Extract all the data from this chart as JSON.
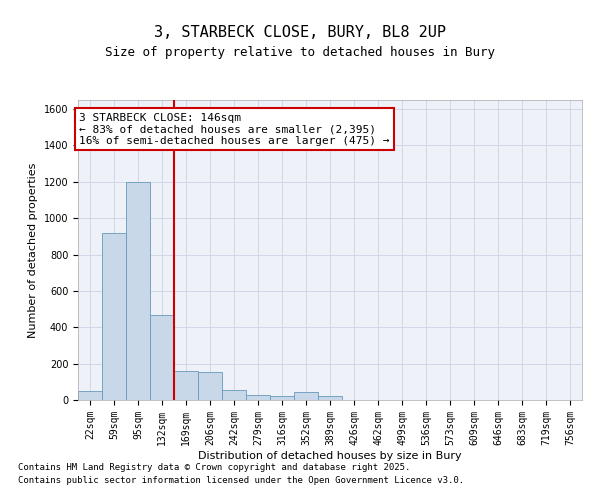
{
  "title_line1": "3, STARBECK CLOSE, BURY, BL8 2UP",
  "title_line2": "Size of property relative to detached houses in Bury",
  "xlabel": "Distribution of detached houses by size in Bury",
  "ylabel": "Number of detached properties",
  "bar_color": "#c8d8e8",
  "bar_edge_color": "#6699bb",
  "annotation_box_color": "#cc0000",
  "vline_color": "#cc0000",
  "grid_color": "#d0d8e8",
  "background_color": "#eef2f8",
  "categories": [
    "22sqm",
    "59sqm",
    "95sqm",
    "132sqm",
    "169sqm",
    "206sqm",
    "242sqm",
    "279sqm",
    "316sqm",
    "352sqm",
    "389sqm",
    "426sqm",
    "462sqm",
    "499sqm",
    "536sqm",
    "573sqm",
    "609sqm",
    "646sqm",
    "683sqm",
    "719sqm",
    "756sqm"
  ],
  "values": [
    50,
    920,
    1200,
    465,
    160,
    155,
    55,
    30,
    20,
    45,
    20,
    0,
    0,
    0,
    0,
    0,
    0,
    0,
    0,
    0,
    0
  ],
  "vline_pos": 3.5,
  "ylim": [
    0,
    1650
  ],
  "yticks": [
    0,
    200,
    400,
    600,
    800,
    1000,
    1200,
    1400,
    1600
  ],
  "annotation_text_line1": "3 STARBECK CLOSE: 146sqm",
  "annotation_text_line2": "← 83% of detached houses are smaller (2,395)",
  "annotation_text_line3": "16% of semi-detached houses are larger (475) →",
  "footer_line1": "Contains HM Land Registry data © Crown copyright and database right 2025.",
  "footer_line2": "Contains public sector information licensed under the Open Government Licence v3.0.",
  "title_fontsize": 11,
  "subtitle_fontsize": 9,
  "axis_label_fontsize": 8,
  "tick_fontsize": 7,
  "annotation_fontsize": 8,
  "footer_fontsize": 6.5
}
